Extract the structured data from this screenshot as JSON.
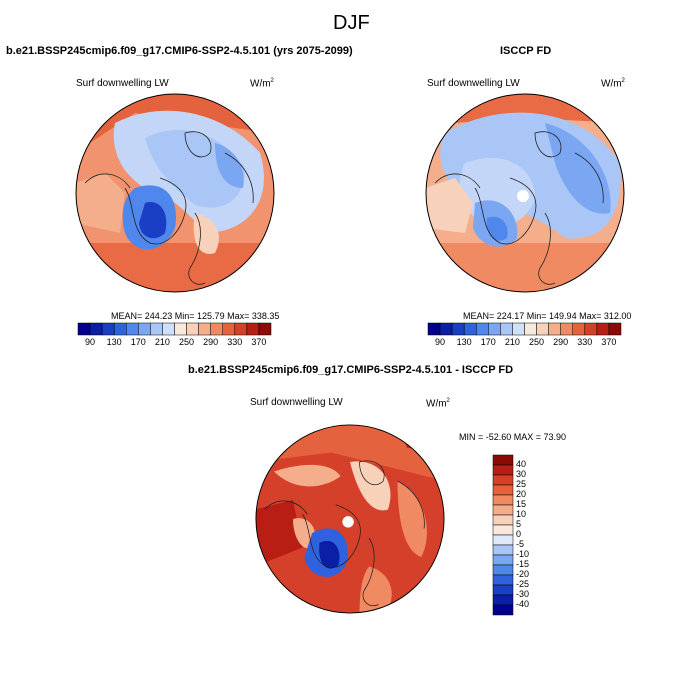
{
  "figure": {
    "title": "DJF"
  },
  "panels": [
    {
      "title": "b.e21.BSSP245cmip6.f09_g17.CMIP6-SSP2-4.5.101 (yrs 2075-2099)",
      "variable": "Surf downwelling LW",
      "units": "W/m",
      "units_exp": "2",
      "stats": "MEAN= 244.23  Min= 125.79  Max= 338.35"
    },
    {
      "title": "ISCCP FD",
      "variable": "Surf downwelling LW",
      "units": "W/m",
      "units_exp": "2",
      "stats": "MEAN= 224.17  Min= 149.94  Max= 312.00"
    },
    {
      "title": "b.e21.BSSP245cmip6.f09_g17.CMIP6-SSP2-4.5.101 - ISCCP FD",
      "variable": "Surf downwelling LW",
      "units": "W/m",
      "units_exp": "2",
      "stats": "MIN = -52.60 MAX =  73.90"
    }
  ],
  "colorbars": {
    "absolute": {
      "labels": [
        "90",
        "130",
        "170",
        "210",
        "250",
        "290",
        "330",
        "370"
      ],
      "colors": [
        "#00008c",
        "#0a1ea6",
        "#1a3fc4",
        "#2f62dc",
        "#4f87ec",
        "#7aa6f2",
        "#a9c6f6",
        "#d1e0f9",
        "#f7eadd",
        "#f8d1bb",
        "#f5ae8c",
        "#ef8a62",
        "#e5623e",
        "#d5402a",
        "#b81e14",
        "#8a0a05"
      ]
    },
    "difference": {
      "labels": [
        "40",
        "30",
        "25",
        "20",
        "15",
        "10",
        "5",
        "0",
        "-5",
        "-10",
        "-15",
        "-20",
        "-25",
        "-30",
        "-40"
      ],
      "colors": [
        "#8a0a05",
        "#b81e14",
        "#d5402a",
        "#e5623e",
        "#ef8a62",
        "#f5ae8c",
        "#f8d1bb",
        "#fbe8dc",
        "#dfe9fa",
        "#a9c6f6",
        "#7aa6f2",
        "#4f87ec",
        "#2f62dc",
        "#1a3fc4",
        "#0a1ea6",
        "#00008c"
      ]
    }
  }
}
